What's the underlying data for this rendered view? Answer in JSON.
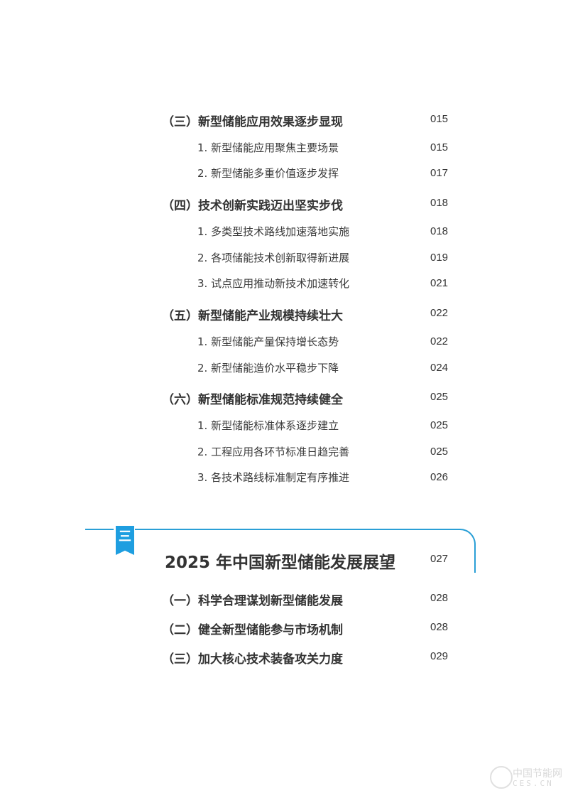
{
  "toc": [
    {
      "type": "sec",
      "title": "（三）新型储能应用效果逐步显现",
      "page": "015"
    },
    {
      "type": "sub",
      "title": "1. 新型储能应用聚焦主要场景",
      "page": "015"
    },
    {
      "type": "sub",
      "title": "2. 新型储能多重价值逐步发挥",
      "page": "017"
    },
    {
      "type": "sec",
      "title": "（四）技术创新实践迈出坚实步伐",
      "page": "018"
    },
    {
      "type": "sub",
      "title": "1. 多类型技术路线加速落地实施",
      "page": "018"
    },
    {
      "type": "sub",
      "title": "2. 各项储能技术创新取得新进展",
      "page": "019"
    },
    {
      "type": "sub",
      "title": "3. 试点应用推动新技术加速转化",
      "page": "021"
    },
    {
      "type": "sec",
      "title": "（五）新型储能产业规模持续壮大",
      "page": "022"
    },
    {
      "type": "sub",
      "title": "1. 新型储能产量保持增长态势",
      "page": "022"
    },
    {
      "type": "sub",
      "title": "2. 新型储能造价水平稳步下降",
      "page": "024"
    },
    {
      "type": "sec",
      "title": "（六）新型储能标准规范持续健全",
      "page": "025"
    },
    {
      "type": "sub",
      "title": "1. 新型储能标准体系逐步建立",
      "page": "025"
    },
    {
      "type": "sub",
      "title": "2. 工程应用各环节标准日趋完善",
      "page": "025"
    },
    {
      "type": "sub",
      "title": "3. 各技术路线标准制定有序推进",
      "page": "026"
    }
  ],
  "chapter": {
    "badge": "三",
    "title": "2025 年中国新型储能发展展望",
    "page": "027",
    "accent_color": "#1e9ee0",
    "items": [
      {
        "type": "sec",
        "title": "（一）科学合理谋划新型储能发展",
        "page": "028"
      },
      {
        "type": "sec",
        "title": "（二）健全新型储能参与市场机制",
        "page": "028"
      },
      {
        "type": "sec",
        "title": "（三）加大核心技术装备攻关力度",
        "page": "029"
      }
    ]
  },
  "watermark": {
    "cn": "中国节能网",
    "en": "CES.CN"
  }
}
